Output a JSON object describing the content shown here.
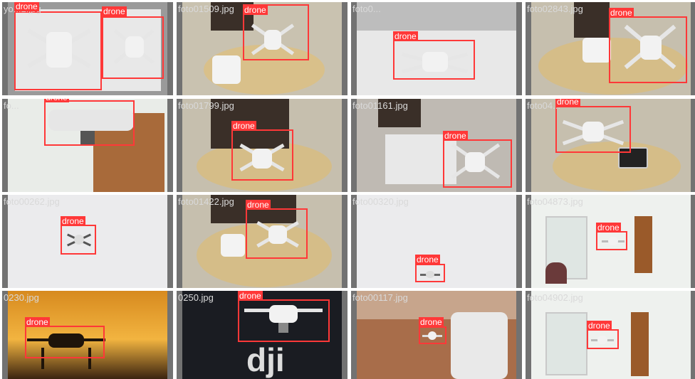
{
  "grid": {
    "class_label": "drone",
    "tiles": [
      {
        "filename": "yo...2.jpg"
      },
      {
        "filename": "foto01509.jpg"
      },
      {
        "filename": "foto0..."
      },
      {
        "filename": "foto02843.jpg"
      },
      {
        "filename": "fo..."
      },
      {
        "filename": "foto01799.jpg"
      },
      {
        "filename": "foto01161.jpg"
      },
      {
        "filename": "foto04..."
      },
      {
        "filename": "foto00262.jpg"
      },
      {
        "filename": "foto01422.jpg"
      },
      {
        "filename": "foto00320.jpg"
      },
      {
        "filename": "foto04873.jpg"
      },
      {
        "filename": "0230.jpg"
      },
      {
        "filename": "0250.jpg"
      },
      {
        "filename": "foto00117.jpg"
      },
      {
        "filename": "foto04902.jpg"
      }
    ]
  },
  "colors": {
    "box": "#ff3838",
    "tile_border": "#727272"
  }
}
